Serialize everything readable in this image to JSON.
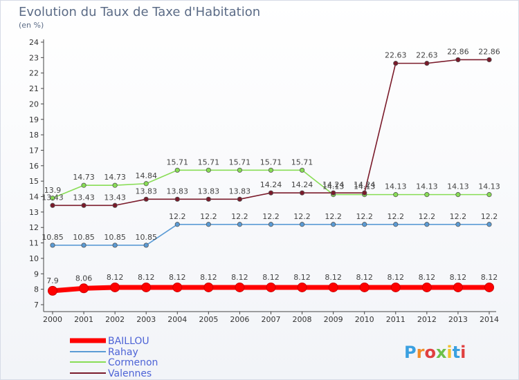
{
  "header": {
    "title": "Evolution du Taux de Taxe d'Habitation",
    "unit": "(en %)"
  },
  "logo": {
    "text": "Proxiti"
  },
  "chart_data": {
    "type": "line",
    "title": "Evolution du Taux de Taxe d'Habitation",
    "ylabel": "(en %)",
    "xlabel": "",
    "x": [
      2000,
      2001,
      2002,
      2003,
      2004,
      2005,
      2006,
      2007,
      2008,
      2009,
      2010,
      2011,
      2012,
      2013,
      2014
    ],
    "ylim": [
      7,
      24
    ],
    "yticks": [
      7,
      8,
      9,
      10,
      11,
      12,
      13,
      14,
      15,
      16,
      17,
      18,
      19,
      20,
      21,
      22,
      23,
      24
    ],
    "grid": false,
    "legend": "bottom-left",
    "series": [
      {
        "name": "BAILLOU",
        "color": "#ff0000",
        "values": [
          7.9,
          8.06,
          8.12,
          8.12,
          8.12,
          8.12,
          8.12,
          8.12,
          8.12,
          8.12,
          8.12,
          8.12,
          8.12,
          8.12,
          8.12
        ],
        "labels": [
          "7.9",
          "8.06",
          "8.12",
          "8.12",
          "8.12",
          "8.12",
          "8.12",
          "8.12",
          "8.12",
          "8.12",
          "8.12",
          "8.12",
          "8.12",
          "8.12",
          "8.12"
        ]
      },
      {
        "name": "Rahay",
        "color": "#5b9bd5",
        "values": [
          10.85,
          10.85,
          10.85,
          10.85,
          12.2,
          12.2,
          12.2,
          12.2,
          12.2,
          12.2,
          12.2,
          12.2,
          12.2,
          12.2,
          12.2
        ],
        "labels": [
          "10.85",
          "10.85",
          "10.85",
          "10.85",
          "12.2",
          "12.2",
          "12.2",
          "12.2",
          "12.2",
          "12.2",
          "12.2",
          "12.2",
          "12.2",
          "12.2",
          "12.2"
        ]
      },
      {
        "name": "Cormenon",
        "color": "#88dd55",
        "values": [
          13.9,
          14.73,
          14.73,
          14.84,
          15.71,
          15.71,
          15.71,
          15.71,
          15.71,
          14.13,
          14.13,
          14.13,
          14.13,
          14.13,
          14.13
        ],
        "labels": [
          "13.9",
          "14.73",
          "14.73",
          "14.84",
          "15.71",
          "15.71",
          "15.71",
          "15.71",
          "15.71",
          "14.13",
          "14.13",
          "14.13",
          "14.13",
          "14.13",
          "14.13"
        ]
      },
      {
        "name": "Valennes",
        "color": "#7a1a2a",
        "values": [
          13.43,
          13.43,
          13.43,
          13.83,
          13.83,
          13.83,
          13.83,
          14.24,
          14.24,
          14.24,
          14.24,
          22.63,
          22.63,
          22.86,
          22.86
        ],
        "labels": [
          "13.43",
          "13.43",
          "13.43",
          "13.83",
          "13.83",
          "13.83",
          "13.83",
          "14.24",
          "14.24",
          "14.24",
          "14.24",
          "22.63",
          "22.63",
          "22.86",
          "22.86"
        ]
      }
    ]
  }
}
